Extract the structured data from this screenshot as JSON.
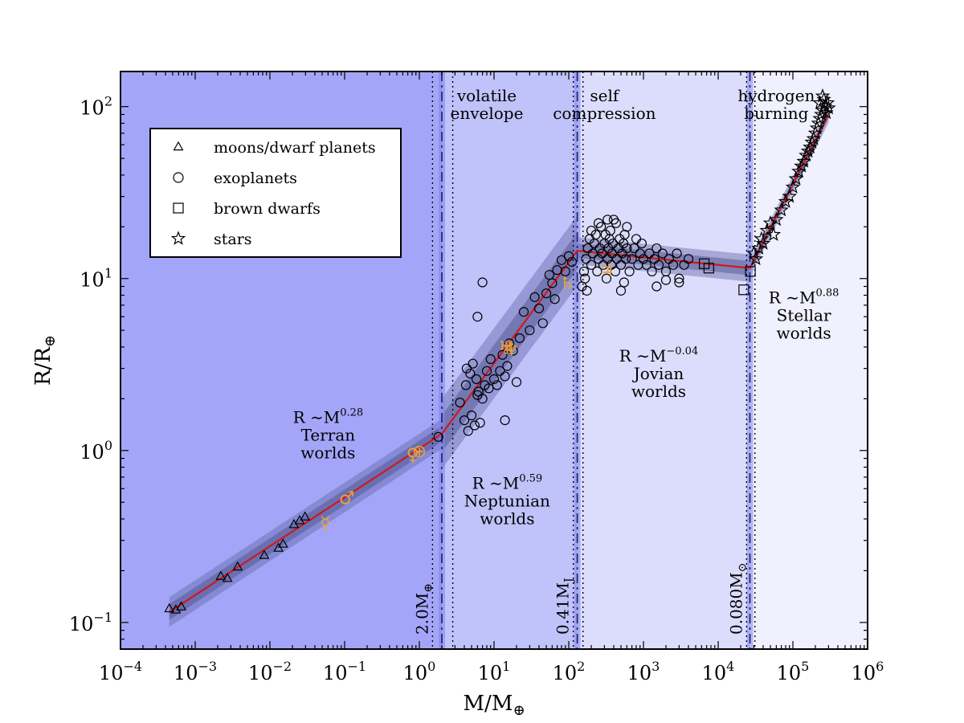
{
  "chart_data": {
    "type": "scatter",
    "xscale": "log",
    "yscale": "log",
    "xlim": [
      0.0001,
      1000000
    ],
    "ylim": [
      0.07,
      160
    ],
    "xlabel": {
      "base": "M/M",
      "sub": "⊕"
    },
    "ylabel": {
      "base": "R/R",
      "sub": "⊕"
    },
    "x_ticks": [
      {
        "value": 0.0001,
        "base": "10",
        "exp": "−4"
      },
      {
        "value": 0.001,
        "base": "10",
        "exp": "−3"
      },
      {
        "value": 0.01,
        "base": "10",
        "exp": "−2"
      },
      {
        "value": 0.1,
        "base": "10",
        "exp": "−1"
      },
      {
        "value": 1,
        "base": "10",
        "exp": "0"
      },
      {
        "value": 10,
        "base": "10",
        "exp": "1"
      },
      {
        "value": 100,
        "base": "10",
        "exp": "2"
      },
      {
        "value": 1000,
        "base": "10",
        "exp": "3"
      },
      {
        "value": 10000,
        "base": "10",
        "exp": "4"
      },
      {
        "value": 100000,
        "base": "10",
        "exp": "5"
      },
      {
        "value": 1000000,
        "base": "10",
        "exp": "6"
      }
    ],
    "y_ticks": [
      {
        "value": 0.1,
        "base": "10",
        "exp": "−1"
      },
      {
        "value": 1,
        "base": "10",
        "exp": "0"
      },
      {
        "value": 10,
        "base": "10",
        "exp": "1"
      },
      {
        "value": 100,
        "base": "10",
        "exp": "2"
      }
    ],
    "regions": [
      {
        "x0": 0.0001,
        "x1": 2.0,
        "color": "#a3a6f8"
      },
      {
        "x0": 2.0,
        "x1": 130,
        "color": "#c0c2fa"
      },
      {
        "x0": 130,
        "x1": 26600,
        "color": "#dcddfc"
      },
      {
        "x0": 26600,
        "x1": 1000000,
        "color": "#f0f0fe"
      }
    ],
    "transitions": [
      {
        "x": 2.0,
        "lo": 1.5,
        "hi": 2.8,
        "label_base": "2.0M",
        "label_sub": "⊕"
      },
      {
        "x": 130,
        "lo": 115,
        "hi": 155,
        "label_base": "0.41M",
        "label_sub": "J"
      },
      {
        "x": 26600,
        "lo": 24000,
        "hi": 31000,
        "label_base": "0.080M",
        "label_sub": "⊙"
      }
    ],
    "transition_titles": [
      {
        "x": 8,
        "lines": [
          "volatile",
          "envelope"
        ]
      },
      {
        "x": 300,
        "lines": [
          "self",
          "compression"
        ]
      },
      {
        "x": 60000,
        "lines": [
          "hydrogen",
          "burning"
        ]
      }
    ],
    "relations": [
      {
        "x": 0.06,
        "y": 1.45,
        "base": "R ∼M",
        "exp": "0.28",
        "name_lines": [
          "Terran",
          "worlds"
        ]
      },
      {
        "x": 15,
        "y": 0.6,
        "base": "R ∼M",
        "exp": "0.59",
        "name_lines": [
          "Neptunian",
          "worlds"
        ]
      },
      {
        "x": 1600,
        "y": 3.3,
        "base": "R ∼M",
        "exp": "−0.04",
        "name_lines": [
          "Jovian",
          "worlds"
        ]
      },
      {
        "x": 140000,
        "y": 7.2,
        "base": "R ∼M",
        "exp": "0.88",
        "name_lines": [
          "Stellar",
          "worlds"
        ]
      }
    ],
    "fit_line": [
      [
        0.00045,
        0.115
      ],
      [
        2.0,
        1.25
      ],
      [
        130,
        14.5
      ],
      [
        26600,
        11.5
      ],
      [
        300000,
        90
      ]
    ],
    "fit_color": "#d0181c",
    "legend": [
      {
        "marker": "triangle",
        "label": "moons/dwarf planets"
      },
      {
        "marker": "circle",
        "label": "exoplanets"
      },
      {
        "marker": "square",
        "label": "brown dwarfs"
      },
      {
        "marker": "star",
        "label": "stars"
      }
    ],
    "series": [
      {
        "marker": "triangle",
        "points": [
          [
            0.00045,
            0.12
          ],
          [
            0.00055,
            0.118
          ],
          [
            0.00065,
            0.123
          ],
          [
            0.0022,
            0.185
          ],
          [
            0.0027,
            0.18
          ],
          [
            0.0037,
            0.21
          ],
          [
            0.0084,
            0.245
          ],
          [
            0.013,
            0.27
          ],
          [
            0.015,
            0.285
          ],
          [
            0.021,
            0.37
          ],
          [
            0.025,
            0.39
          ],
          [
            0.0295,
            0.41
          ]
        ]
      },
      {
        "marker": "circle",
        "points": [
          [
            1.8,
            1.2
          ],
          [
            3.5,
            1.9
          ],
          [
            4,
            1.5
          ],
          [
            4.5,
            1.3
          ],
          [
            5,
            1.6
          ],
          [
            5.5,
            1.4
          ],
          [
            6,
            2.1
          ],
          [
            6.5,
            1.45
          ],
          [
            4.2,
            2.4
          ],
          [
            4.8,
            2.8
          ],
          [
            5.2,
            3.2
          ],
          [
            5.8,
            2.6
          ],
          [
            6.2,
            2.2
          ],
          [
            7,
            2.0
          ],
          [
            7.5,
            2.4
          ],
          [
            8,
            2.9
          ],
          [
            8.5,
            2.3
          ],
          [
            9,
            3.4
          ],
          [
            10,
            2.6
          ],
          [
            11,
            2.4
          ],
          [
            12,
            2.9
          ],
          [
            13,
            3.6
          ],
          [
            14,
            2.7
          ],
          [
            15,
            3.1
          ],
          [
            16,
            4.2
          ],
          [
            18,
            3.8
          ],
          [
            20,
            2.5
          ],
          [
            22,
            4.5
          ],
          [
            25,
            6.4
          ],
          [
            30,
            5.0
          ],
          [
            35,
            7.8
          ],
          [
            40,
            6.7
          ],
          [
            45,
            5.5
          ],
          [
            50,
            8.2
          ],
          [
            55,
            10.5
          ],
          [
            60,
            9.4
          ],
          [
            65,
            7.6
          ],
          [
            70,
            11.2
          ],
          [
            80,
            12.8
          ],
          [
            90,
            11.0
          ],
          [
            100,
            13.5
          ],
          [
            110,
            12.5
          ],
          [
            6,
            6.0
          ],
          [
            7,
            9.5
          ],
          [
            14,
            1.5
          ],
          [
            4.3,
            3.0
          ],
          [
            160,
            11
          ],
          [
            170,
            13
          ],
          [
            180,
            15
          ],
          [
            190,
            17
          ],
          [
            200,
            12
          ],
          [
            210,
            14
          ],
          [
            220,
            16
          ],
          [
            230,
            18
          ],
          [
            240,
            11
          ],
          [
            250,
            13
          ],
          [
            260,
            15
          ],
          [
            270,
            20
          ],
          [
            280,
            14
          ],
          [
            290,
            12
          ],
          [
            300,
            16
          ],
          [
            310,
            18
          ],
          [
            320,
            10
          ],
          [
            330,
            13
          ],
          [
            340,
            15
          ],
          [
            350,
            17
          ],
          [
            360,
            19
          ],
          [
            370,
            12
          ],
          [
            380,
            14
          ],
          [
            390,
            16
          ],
          [
            400,
            22
          ],
          [
            420,
            11
          ],
          [
            440,
            13
          ],
          [
            460,
            15
          ],
          [
            480,
            17
          ],
          [
            500,
            12
          ],
          [
            520,
            14
          ],
          [
            540,
            16
          ],
          [
            560,
            18
          ],
          [
            580,
            13
          ],
          [
            600,
            15
          ],
          [
            650,
            11
          ],
          [
            700,
            13
          ],
          [
            750,
            15
          ],
          [
            800,
            17
          ],
          [
            850,
            12
          ],
          [
            900,
            14
          ],
          [
            950,
            16
          ],
          [
            1000,
            13
          ],
          [
            1100,
            12
          ],
          [
            1200,
            14
          ],
          [
            1300,
            11
          ],
          [
            1400,
            13
          ],
          [
            1500,
            15
          ],
          [
            1600,
            12
          ],
          [
            1800,
            14
          ],
          [
            2000,
            11
          ],
          [
            2200,
            13
          ],
          [
            2500,
            12
          ],
          [
            2800,
            14
          ],
          [
            3000,
            10
          ],
          [
            3500,
            12
          ],
          [
            4000,
            13
          ],
          [
            150,
            9
          ],
          [
            165,
            10
          ],
          [
            175,
            8.5
          ],
          [
            500,
            8.5
          ],
          [
            550,
            9.5
          ],
          [
            1500,
            9
          ],
          [
            2000,
            9.8
          ],
          [
            3000,
            9.5
          ],
          [
            250,
            21
          ],
          [
            330,
            22
          ],
          [
            430,
            21
          ],
          [
            200,
            19
          ],
          [
            600,
            20
          ]
        ]
      },
      {
        "marker": "square",
        "points": [
          [
            6500,
            12.2
          ],
          [
            7500,
            11.5
          ],
          [
            22000,
            8.6
          ],
          [
            27000,
            11.0
          ]
        ]
      },
      {
        "marker": "star",
        "points": [
          [
            30000,
            14
          ],
          [
            32000,
            13
          ],
          [
            35000,
            15
          ],
          [
            38000,
            17
          ],
          [
            40000,
            16
          ],
          [
            45000,
            19
          ],
          [
            50000,
            21
          ],
          [
            55000,
            18
          ],
          [
            60000,
            22
          ],
          [
            70000,
            25
          ],
          [
            80000,
            28
          ],
          [
            90000,
            30
          ],
          [
            100000,
            34
          ],
          [
            110000,
            38
          ],
          [
            120000,
            42
          ],
          [
            130000,
            45
          ],
          [
            140000,
            48
          ],
          [
            150000,
            52
          ],
          [
            160000,
            55
          ],
          [
            170000,
            58
          ],
          [
            180000,
            62
          ],
          [
            190000,
            65
          ],
          [
            200000,
            70
          ],
          [
            210000,
            75
          ],
          [
            220000,
            80
          ],
          [
            230000,
            85
          ],
          [
            240000,
            90
          ],
          [
            250000,
            95
          ],
          [
            260000,
            110
          ],
          [
            270000,
            100
          ],
          [
            280000,
            92
          ],
          [
            290000,
            105
          ],
          [
            300000,
            98
          ],
          [
            230000,
            105
          ],
          [
            250000,
            115
          ]
        ]
      }
    ],
    "solar_system_color": "#e6a23a",
    "solar_system": [
      {
        "name": "Mercury",
        "symbol": "☿",
        "x": 0.055,
        "y": 0.383
      },
      {
        "name": "Mars",
        "symbol": "♂",
        "x": 0.107,
        "y": 0.532
      },
      {
        "name": "Venus",
        "symbol": "♀",
        "x": 0.815,
        "y": 0.95
      },
      {
        "name": "Earth",
        "symbol": "⊕",
        "x": 1.0,
        "y": 1.0
      },
      {
        "name": "Uranus",
        "symbol": "♅",
        "x": 14.5,
        "y": 3.98
      },
      {
        "name": "Neptune",
        "symbol": "♆",
        "x": 17.1,
        "y": 3.86
      },
      {
        "name": "Saturn",
        "symbol": "♄",
        "x": 95.2,
        "y": 9.45
      },
      {
        "name": "Jupiter",
        "symbol": "♃",
        "x": 317.8,
        "y": 11.2
      }
    ]
  }
}
